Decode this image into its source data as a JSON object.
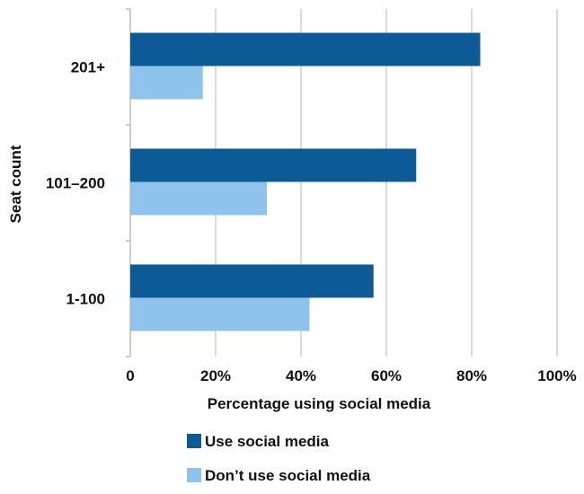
{
  "chart_data": {
    "type": "bar",
    "orientation": "horizontal",
    "categories": [
      "201+",
      "101–200",
      "1-100"
    ],
    "series": [
      {
        "name": "Use social media",
        "values": [
          82,
          67,
          57
        ],
        "color": "#0d5b96"
      },
      {
        "name": "Don’t use social media",
        "values": [
          17,
          32,
          42
        ],
        "color": "#8ec3ec"
      }
    ],
    "x_ticks": [
      "0",
      "20%",
      "40%",
      "60%",
      "80%",
      "100%"
    ],
    "xlim": [
      0,
      100
    ],
    "xlabel": "Percentage using social media",
    "ylabel": "Seat count",
    "grid": "vertical",
    "legend": "bottom"
  }
}
